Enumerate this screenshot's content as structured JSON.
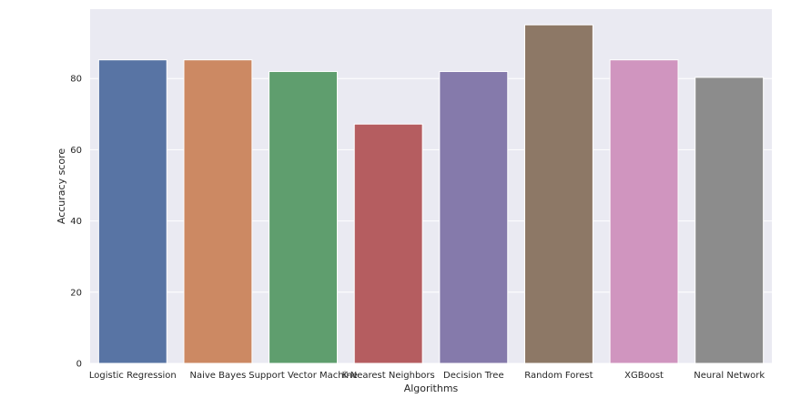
{
  "chart_data": {
    "type": "bar",
    "title": "",
    "xlabel": "Algorithms",
    "ylabel": "Accuracy score",
    "ylim": [
      0,
      99.5
    ],
    "yticks": [
      0,
      20,
      40,
      60,
      80
    ],
    "grid": true,
    "categories": [
      "Logistic Regression",
      "Naive Bayes",
      "Support Vector Machine",
      "K-Nearest Neighbors",
      "Decision Tree",
      "Random Forest",
      "XGBoost",
      "Neural Network"
    ],
    "values": [
      85.25,
      85.25,
      81.97,
      67.21,
      81.97,
      95.08,
      85.25,
      80.33
    ],
    "colors": [
      "#5874a4",
      "#cc8963",
      "#5f9e6e",
      "#b55d60",
      "#857aab",
      "#8d7866",
      "#d095bf",
      "#8c8c8c"
    ],
    "background": "#eaeaf2",
    "grid_color": "#ffffff"
  }
}
